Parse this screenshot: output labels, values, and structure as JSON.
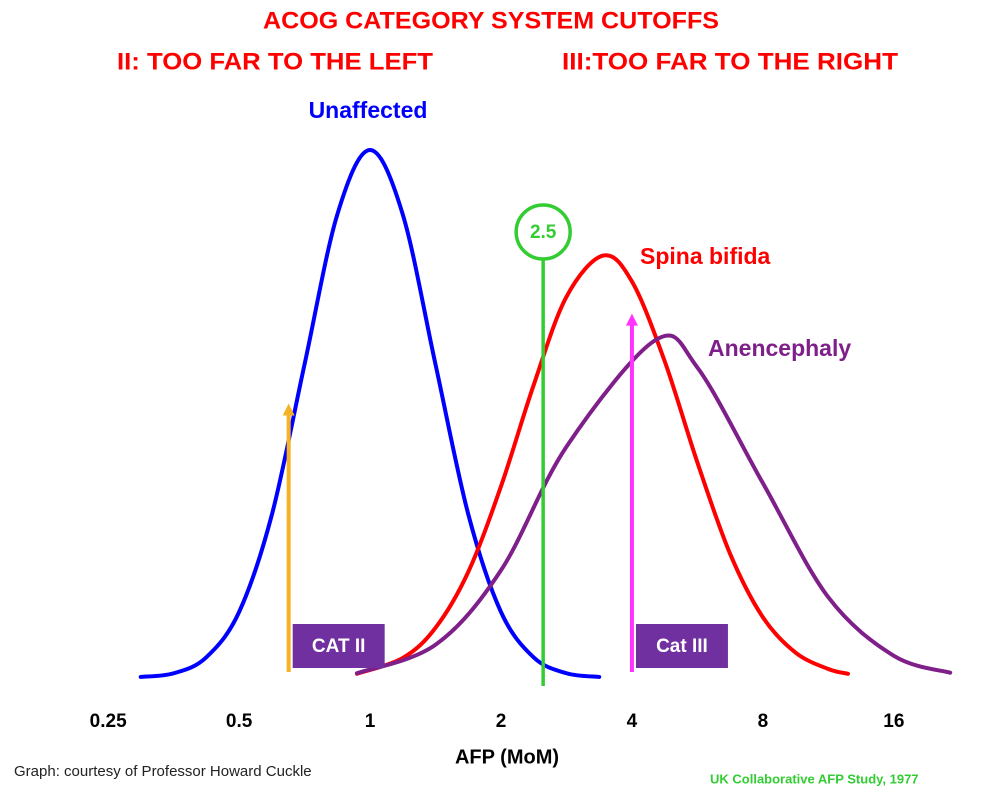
{
  "chart_data": {
    "type": "line",
    "title": "ACOG CATEGORY SYSTEM CUTOFFS",
    "subtitle_left": "II: TOO FAR TO THE LEFT",
    "subtitle_right": "III:TOO FAR TO THE RIGHT",
    "x_label": "AFP (MoM)",
    "xscale": "log",
    "xlim": [
      0.2,
      22
    ],
    "xticks": [
      0.25,
      0.5,
      1,
      2,
      4,
      8,
      16
    ],
    "ylim": [
      0,
      100
    ],
    "series": [
      {
        "name": "Unaffected",
        "color": "#0000ff",
        "x": [
          0.297,
          0.354,
          0.42,
          0.5,
          0.595,
          0.707,
          0.841,
          1,
          1.189,
          1.414,
          1.682,
          2,
          2.378,
          2.828,
          3.364
        ],
        "values": [
          0.2,
          0.9,
          3.9,
          12.5,
          31,
          59.4,
          87.8,
          100,
          87.8,
          59.4,
          31,
          12.5,
          3.9,
          0.9,
          0.2
        ]
      },
      {
        "name": "Spina bifida",
        "color": "#ff0000",
        "x": [
          0.933,
          1.189,
          1.414,
          1.682,
          2,
          2.378,
          2.828,
          3.434,
          4,
          4.757,
          5.657,
          6.727,
          8,
          9.514,
          11.31,
          12.55
        ],
        "values": [
          0.8,
          3.8,
          9.5,
          20.1,
          36.3,
          55.5,
          72.2,
          80,
          75.1,
          60,
          40.8,
          23.5,
          11.5,
          4.8,
          1.7,
          0.8
        ]
      },
      {
        "name": "Anencephaly",
        "color": "#7f1f8a",
        "x": [
          0.933,
          1.414,
          2,
          2.828,
          4.532,
          5.657,
          8,
          11.31,
          16,
          21.56
        ],
        "values": [
          0.9,
          6.3,
          20.4,
          43.8,
          64,
          58.8,
          36.9,
          15.3,
          4.2,
          1
        ]
      }
    ],
    "cutoff": {
      "label": "2.5",
      "x": 2.5,
      "color": "#33cc33"
    },
    "arrows": [
      {
        "label": "CAT II",
        "x": 0.65,
        "value": 52,
        "color": "#f5b324"
      },
      {
        "label": "Cat III",
        "x": 4,
        "value": 69,
        "color": "#ff33ff"
      }
    ],
    "credit": "Graph: courtesy of Professor  Howard Cuckle",
    "source": "UK Collaborative AFP Study, 1977"
  }
}
